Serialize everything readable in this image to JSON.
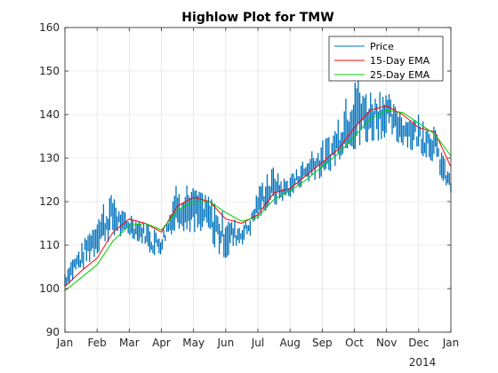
{
  "chart_data": {
    "type": "line",
    "title": "Highlow Plot for TMW",
    "xlabel": "",
    "ylabel": "",
    "ylim": [
      90,
      160
    ],
    "yticks": [
      90,
      100,
      110,
      120,
      130,
      140,
      150,
      160
    ],
    "x_range_months": [
      0,
      12
    ],
    "xticks": [
      {
        "month": 0,
        "label": "Jan"
      },
      {
        "month": 1,
        "label": "Feb"
      },
      {
        "month": 2,
        "label": "Mar"
      },
      {
        "month": 3,
        "label": "Apr"
      },
      {
        "month": 4,
        "label": "May"
      },
      {
        "month": 5,
        "label": "Jun"
      },
      {
        "month": 6,
        "label": "Jul"
      },
      {
        "month": 7,
        "label": "Aug"
      },
      {
        "month": 8,
        "label": "Sep"
      },
      {
        "month": 9,
        "label": "Oct"
      },
      {
        "month": 10,
        "label": "Nov"
      },
      {
        "month": 11,
        "label": "Dec"
      },
      {
        "month": 12,
        "label": "Jan"
      }
    ],
    "year_label": "2014",
    "grid": true,
    "legend_position": "top-right",
    "series": [
      {
        "name": "Price",
        "color": "#0072bd",
        "style": "highlow",
        "x": [
          0,
          0.25,
          0.5,
          0.75,
          1,
          1.25,
          1.5,
          1.75,
          2,
          2.25,
          2.5,
          2.75,
          3,
          3.25,
          3.5,
          3.75,
          4,
          4.25,
          4.5,
          4.75,
          5,
          5.25,
          5.5,
          5.75,
          6,
          6.25,
          6.5,
          6.75,
          7,
          7.25,
          7.5,
          7.75,
          8,
          8.25,
          8.5,
          8.75,
          9,
          9.25,
          9.5,
          9.75,
          10,
          10.25,
          10.5,
          10.75,
          11,
          11.25,
          11.5,
          11.75,
          12
        ],
        "high": [
          104,
          108,
          110,
          114,
          117,
          120,
          122,
          118,
          117,
          116,
          115,
          114,
          113,
          118,
          125,
          124,
          123,
          122,
          121,
          119,
          117,
          116,
          115,
          117,
          123,
          126,
          128,
          125,
          126,
          128,
          130,
          133,
          134,
          135,
          139,
          144,
          151,
          146,
          145,
          147,
          146,
          142,
          141,
          140,
          140,
          139,
          137,
          131,
          126
        ],
        "low": [
          100,
          102,
          104,
          106,
          108,
          110,
          112,
          112,
          112,
          111,
          110,
          107,
          108,
          112,
          114,
          113,
          113,
          113,
          112,
          108,
          107,
          109,
          110,
          112,
          116,
          118,
          119,
          120,
          121,
          123,
          124,
          125,
          125,
          127,
          129,
          132,
          132,
          133,
          134,
          134,
          135,
          134,
          133,
          132,
          131,
          130,
          129,
          124,
          121
        ]
      },
      {
        "name": "15-Day EMA",
        "color": "#ff0000",
        "x": [
          0,
          0.5,
          1,
          1.5,
          2,
          2.5,
          3,
          3.5,
          4,
          4.5,
          5,
          5.5,
          6,
          6.5,
          7,
          7.5,
          8,
          8.5,
          9,
          9.5,
          10,
          10.5,
          11,
          11.5,
          12
        ],
        "values": [
          100.5,
          104,
          107,
          113,
          116,
          115,
          113,
          119,
          121,
          120,
          116,
          115,
          117,
          122,
          123,
          126,
          129,
          132,
          137,
          141,
          142,
          140,
          137,
          136,
          128
        ]
      },
      {
        "name": "25-Day EMA",
        "color": "#00cc00",
        "x": [
          0,
          0.5,
          1,
          1.5,
          2,
          2.5,
          3,
          3.5,
          4,
          4.5,
          5,
          5.5,
          6,
          6.5,
          7,
          7.5,
          8,
          8.5,
          9,
          9.5,
          10,
          10.5,
          11,
          11.5,
          12
        ],
        "values": [
          99.5,
          102.5,
          105.5,
          111,
          114.5,
          115,
          113.5,
          118,
          120,
          120,
          117.5,
          115.5,
          116.5,
          120.5,
          122.5,
          125,
          128,
          131,
          135,
          139,
          141,
          140.5,
          138,
          135.5,
          130.5
        ]
      }
    ]
  }
}
